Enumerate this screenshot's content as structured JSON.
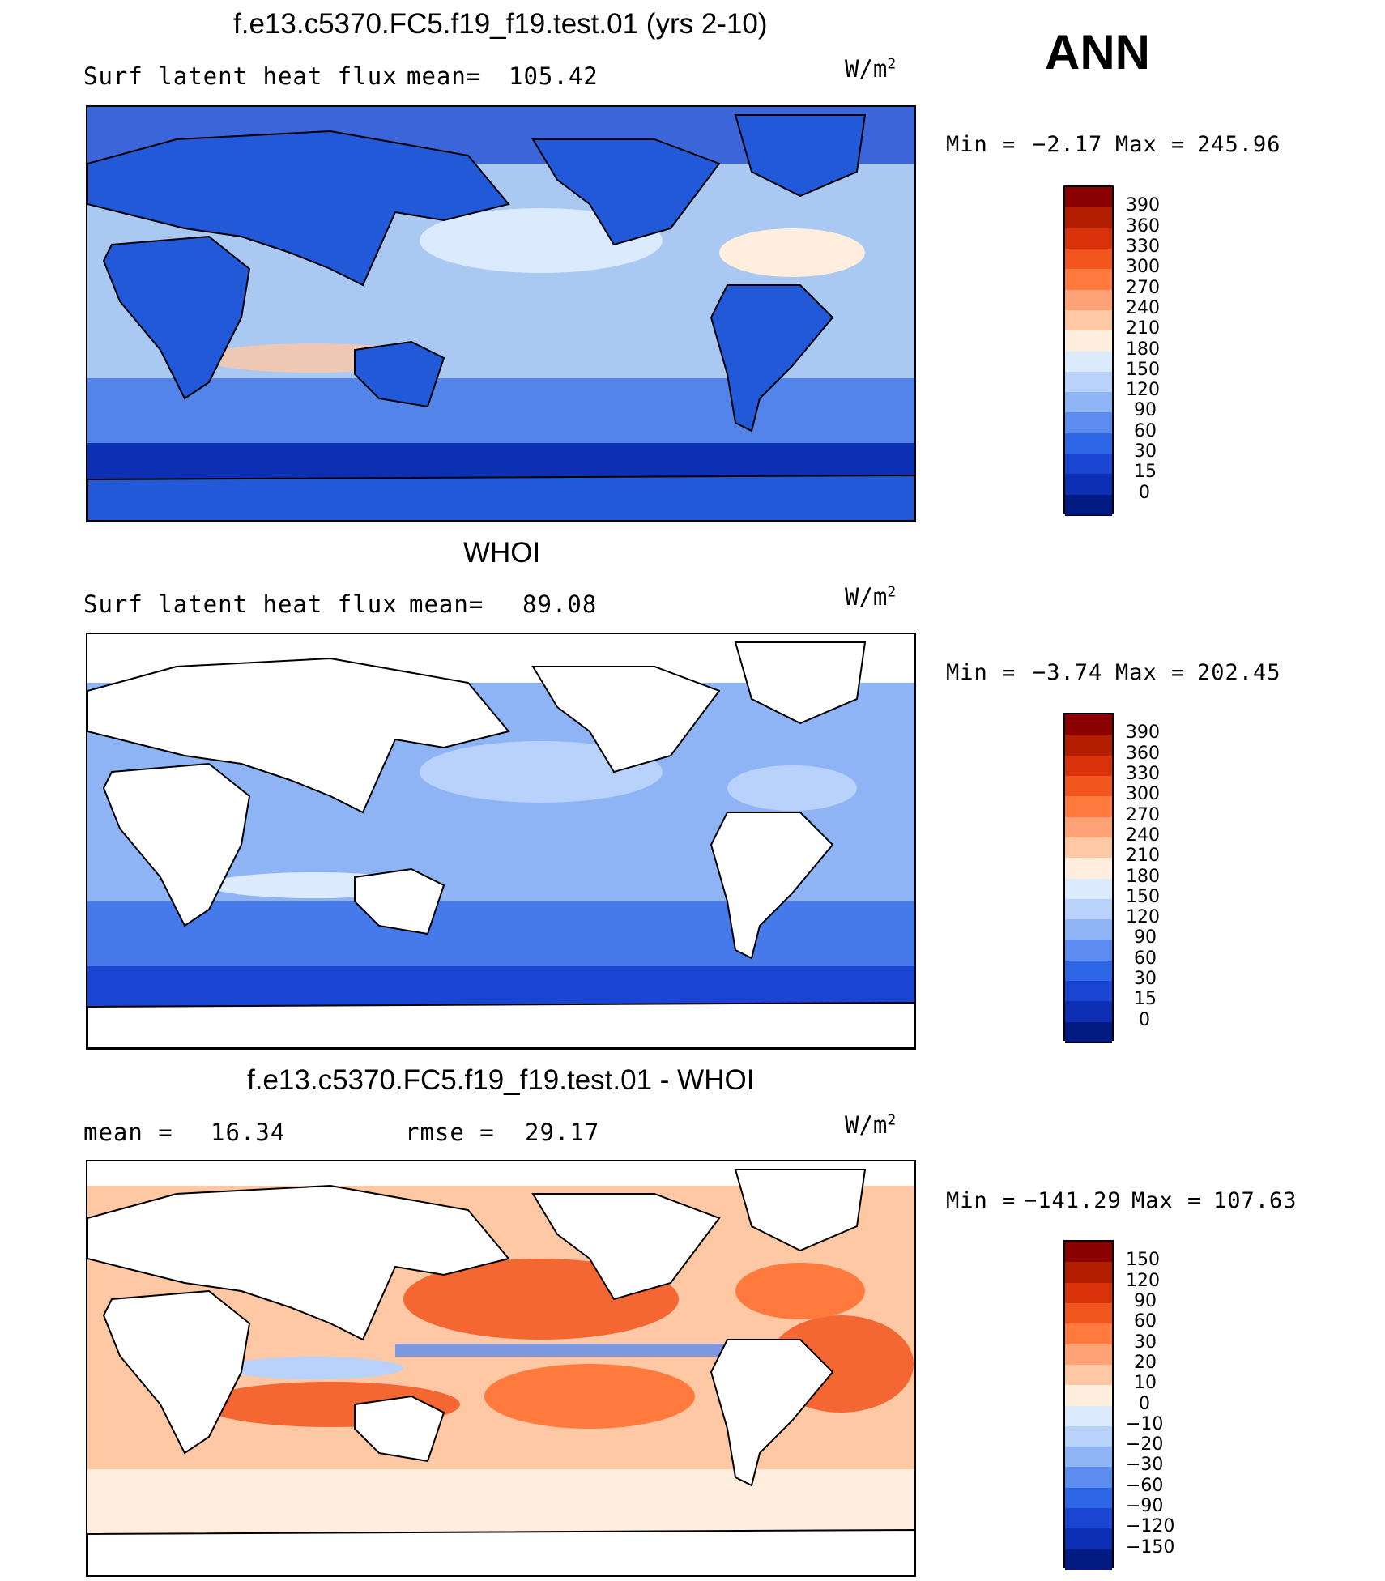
{
  "season": "ANN",
  "panels": [
    {
      "title": "f.e13.c5370.FC5.f19_f19.test.01 (yrs 2-10)",
      "left_label": "Surf latent heat flux",
      "stat_label": "mean=",
      "stat_value": "105.42",
      "units_base": "W/m",
      "units_exp": "2",
      "min_label": "Min =",
      "min_value": "−2.17",
      "max_label": "Max =",
      "max_value": "245.96",
      "ocean_color": "#a9c8f2",
      "land_color": "#2159d9",
      "colorbar": {
        "labels": [
          "390",
          "360",
          "330",
          "300",
          "270",
          "240",
          "210",
          "180",
          "150",
          "120",
          "90",
          "60",
          "30",
          "15",
          "0"
        ],
        "colors": [
          "#8b0000",
          "#b41e00",
          "#d9320a",
          "#f2551e",
          "#ff7a3c",
          "#ffa276",
          "#ffc8a4",
          "#ffeedd",
          "#dbeafc",
          "#b8d2fb",
          "#8fb4f5",
          "#5c8cf0",
          "#2d66e6",
          "#1a44d2",
          "#0d2fb4",
          "#001a82"
        ]
      }
    },
    {
      "title": "WHOI",
      "left_label": "Surf latent heat flux",
      "stat_label": "mean=",
      "stat_value": "89.08",
      "units_base": "W/m",
      "units_exp": "2",
      "min_label": "Min =",
      "min_value": "−3.74",
      "max_label": "Max =",
      "max_value": "202.45",
      "ocean_color": "#8fb4f5",
      "land_color": "#ffffff",
      "colorbar": {
        "labels": [
          "390",
          "360",
          "330",
          "300",
          "270",
          "240",
          "210",
          "180",
          "150",
          "120",
          "90",
          "60",
          "30",
          "15",
          "0"
        ],
        "colors": [
          "#8b0000",
          "#b41e00",
          "#d9320a",
          "#f2551e",
          "#ff7a3c",
          "#ffa276",
          "#ffc8a4",
          "#ffeedd",
          "#dbeafc",
          "#b8d2fb",
          "#8fb4f5",
          "#5c8cf0",
          "#2d66e6",
          "#1a44d2",
          "#0d2fb4",
          "#001a82"
        ]
      }
    },
    {
      "title": "f.e13.c5370.FC5.f19_f19.test.01 - WHOI",
      "left_label": "mean =",
      "left_value": "16.34",
      "stat_label": "rmse =",
      "stat_value": "29.17",
      "units_base": "W/m",
      "units_exp": "2",
      "min_label": "Min =",
      "min_value": "−141.29",
      "max_label": "Max =",
      "max_value": "107.63",
      "ocean_color": "#ffc8a4",
      "land_color": "#ffffff",
      "colorbar": {
        "labels": [
          "150",
          "120",
          "90",
          "60",
          "30",
          "20",
          "10",
          "0",
          "−10",
          "−20",
          "−30",
          "−60",
          "−90",
          "−120",
          "−150"
        ],
        "colors": [
          "#8b0000",
          "#b41e00",
          "#d9320a",
          "#f2551e",
          "#ff7a3c",
          "#ffa276",
          "#ffc8a4",
          "#ffeedd",
          "#dbeafc",
          "#b8d2fb",
          "#8fb4f5",
          "#5c8cf0",
          "#2d66e6",
          "#1a44d2",
          "#0d2fb4",
          "#001a82"
        ]
      }
    }
  ]
}
